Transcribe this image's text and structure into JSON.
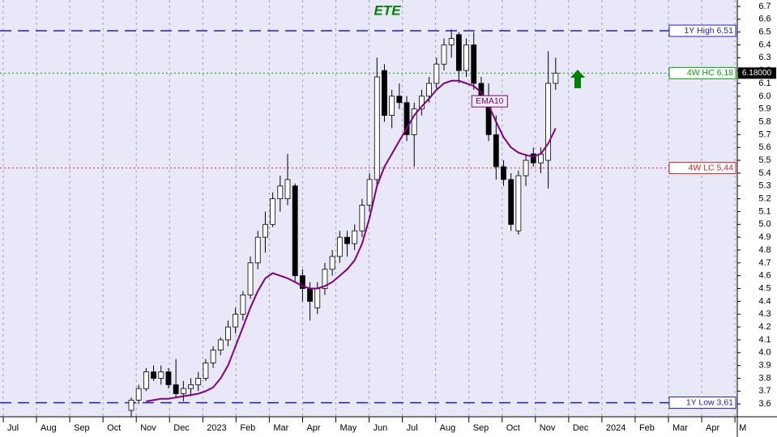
{
  "chart_data": {
    "type": "candlestick",
    "title": "ETE",
    "ylim": [
      3.5,
      6.75
    ],
    "yticks": [
      3.6,
      3.7,
      3.8,
      3.9,
      {
        "value": 4,
        "label": "4.0"
      },
      4.1,
      4.2,
      4.3,
      4.4,
      4.5,
      4.6,
      4.7,
      4.8,
      4.9,
      {
        "value": 5,
        "label": "5.0"
      },
      5.1,
      5.2,
      5.3,
      5.4,
      5.5,
      5.6,
      5.7,
      5.8,
      5.9,
      {
        "value": 6,
        "label": "6.0"
      },
      6.1,
      6.2,
      6.3,
      6.4,
      6.5,
      6.6,
      6.7
    ],
    "x_labels": [
      "Jul",
      "Aug",
      "Sep",
      "Oct",
      "Nov",
      "Dec",
      "2023",
      "Feb",
      "Mar",
      "Apr",
      "May",
      "Jun",
      "Jul",
      "Aug",
      "Sep",
      "Oct",
      "Nov",
      "Dec",
      "2024",
      "Feb",
      "Mar",
      "Apr",
      "M"
    ],
    "grid": true,
    "up_color": "#ffffff",
    "down_color": "#000000",
    "open": [
      3.55,
      3.63,
      3.72,
      3.85,
      3.8,
      3.85,
      3.75,
      3.68,
      3.72,
      3.75,
      3.8,
      3.92,
      4.02,
      4.1,
      4.2,
      4.3,
      4.45,
      4.7,
      4.9,
      5.0,
      5.2,
      5.2,
      5.3,
      4.6,
      4.5,
      4.35,
      4.5,
      4.65,
      4.75,
      4.9,
      4.85,
      4.95,
      5.15,
      5.35,
      6.2,
      5.85,
      6.0,
      5.95,
      5.7,
      5.9,
      6.0,
      6.1,
      6.25,
      6.4,
      6.48,
      6.2,
      6.4,
      6.1,
      6.0,
      5.7,
      5.45,
      5.35,
      4.95,
      5.38,
      5.55,
      5.48,
      5.5,
      6.1
    ],
    "high": [
      3.65,
      3.75,
      3.88,
      3.9,
      3.9,
      3.88,
      3.95,
      3.78,
      3.8,
      3.85,
      3.95,
      4.05,
      4.12,
      4.25,
      4.35,
      4.48,
      4.75,
      4.95,
      5.1,
      5.25,
      5.38,
      5.55,
      5.32,
      4.65,
      4.55,
      4.55,
      4.7,
      4.8,
      4.95,
      4.95,
      5.0,
      5.2,
      5.4,
      6.3,
      6.25,
      6.05,
      6.1,
      6.0,
      5.95,
      6.05,
      6.15,
      6.3,
      6.45,
      6.52,
      6.5,
      6.45,
      6.5,
      6.15,
      6.1,
      5.85,
      5.5,
      5.4,
      5.42,
      5.55,
      5.6,
      5.6,
      6.35,
      6.3
    ],
    "low": [
      3.5,
      3.6,
      3.7,
      3.78,
      3.75,
      3.72,
      3.65,
      3.62,
      3.66,
      3.7,
      3.78,
      3.88,
      3.98,
      4.05,
      4.15,
      4.25,
      4.42,
      4.65,
      4.78,
      4.98,
      5.1,
      5.15,
      4.55,
      4.4,
      4.25,
      4.3,
      4.45,
      4.6,
      4.7,
      4.75,
      4.8,
      4.9,
      5.1,
      5.3,
      5.8,
      5.75,
      5.9,
      5.65,
      5.45,
      5.85,
      5.95,
      6.05,
      6.2,
      6.3,
      6.1,
      6.15,
      6.05,
      5.95,
      5.65,
      5.35,
      5.3,
      4.95,
      4.92,
      5.3,
      5.45,
      5.4,
      5.28,
      6.05
    ],
    "close": [
      3.63,
      3.72,
      3.85,
      3.8,
      3.85,
      3.75,
      3.68,
      3.72,
      3.75,
      3.8,
      3.92,
      4.02,
      4.1,
      4.2,
      4.3,
      4.45,
      4.7,
      4.9,
      5.0,
      5.2,
      5.3,
      5.35,
      4.6,
      4.5,
      4.4,
      4.5,
      4.65,
      4.75,
      4.9,
      4.85,
      4.95,
      5.15,
      5.35,
      6.15,
      5.85,
      6.0,
      5.95,
      5.7,
      5.9,
      6.0,
      6.1,
      6.25,
      6.4,
      6.45,
      6.2,
      6.4,
      6.1,
      6.0,
      5.7,
      5.45,
      5.35,
      5.0,
      5.38,
      5.5,
      5.48,
      5.55,
      6.1,
      6.18
    ],
    "series": [
      {
        "name": "EMA10",
        "color": "#800080",
        "values": [
          null,
          null,
          3.62,
          3.63,
          3.64,
          3.64,
          3.65,
          3.66,
          3.67,
          3.68,
          3.7,
          3.73,
          3.8,
          3.9,
          4.05,
          4.2,
          4.35,
          4.48,
          4.58,
          4.62,
          4.6,
          4.58,
          4.55,
          4.52,
          4.5,
          4.5,
          4.52,
          4.55,
          4.6,
          4.65,
          4.72,
          4.85,
          5.05,
          5.3,
          5.45,
          5.55,
          5.65,
          5.75,
          5.85,
          5.92,
          5.98,
          6.05,
          6.1,
          6.12,
          6.12,
          6.1,
          6.08,
          6.03,
          5.93,
          5.8,
          5.68,
          5.6,
          5.56,
          5.54,
          5.53,
          5.55,
          5.63,
          5.75
        ]
      }
    ],
    "levels": [
      {
        "value": 6.51,
        "label": "1Y High 6,51",
        "color": "#2020c0",
        "style": "dashed"
      },
      {
        "value": 6.18,
        "label": "4W HC 6,18",
        "color": "#00a000",
        "style": "dotted"
      },
      {
        "value": 5.44,
        "label": "4W LC 5,44",
        "color": "#e02020",
        "style": "dotted"
      },
      {
        "value": 3.61,
        "label": "1Y Low 3,61",
        "color": "#2020c0",
        "style": "dashed"
      }
    ],
    "last_price": {
      "value": 6.18,
      "label": "6.18000"
    }
  }
}
